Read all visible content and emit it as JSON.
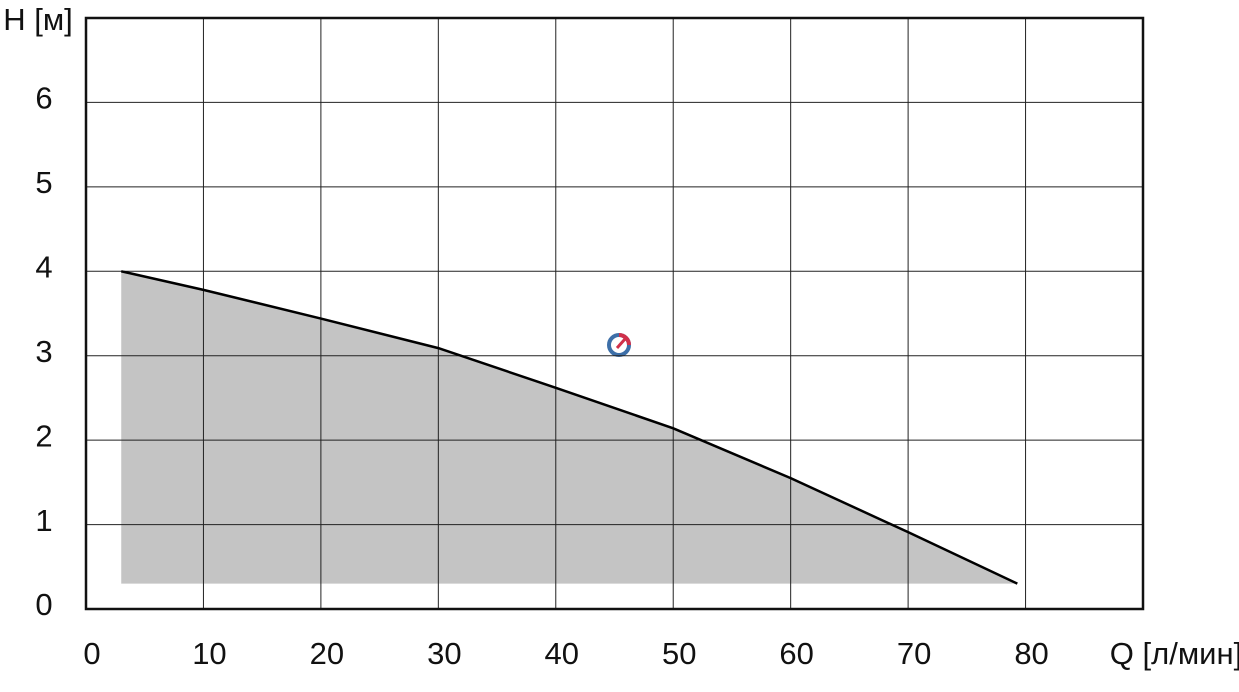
{
  "chart_data": {
    "type": "area",
    "x_label": "Q [л/мин]",
    "y_label": "H [м]",
    "x": [
      3,
      10,
      20,
      30,
      40,
      50,
      60,
      70,
      79.3
    ],
    "series": [
      {
        "values": [
          4,
          3.78,
          3.44,
          3.09,
          2.62,
          2.14,
          1.55,
          0.91,
          0.3
        ],
        "color": "#000000",
        "fill": "#c4c4c4"
      }
    ],
    "xlim": [
      0,
      90
    ],
    "ylim": [
      0,
      7
    ],
    "xticks": [
      0,
      10,
      20,
      30,
      40,
      50,
      60,
      70,
      80
    ],
    "yticks": [
      0,
      1,
      2,
      3,
      4,
      5,
      6
    ],
    "grid": true
  }
}
